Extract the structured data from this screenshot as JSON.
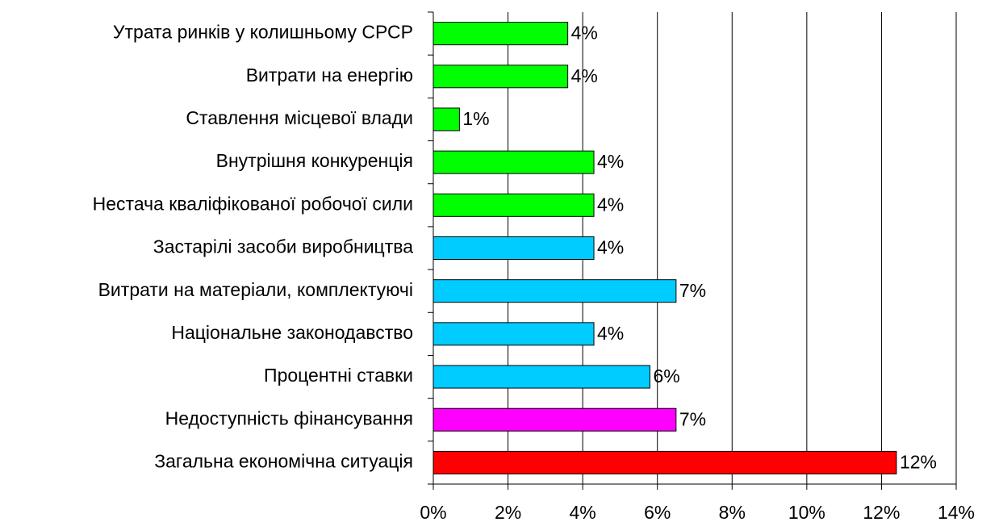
{
  "chart_data": {
    "type": "barh",
    "categories": [
      "Утрата ринків у колишньому СРСР",
      "Витрати на енергію",
      "Ставлення місцевої влади",
      "Внутрішня конкуренція",
      "Нестача кваліфікованої робочої сили",
      "Застарілі засоби виробництва",
      "Витрати на матеріали, комплектуючі",
      "Національне законодавство",
      "Процентні ставки",
      "Недоступність фінансування",
      "Загальна економічна ситуація"
    ],
    "values": [
      3.6,
      3.6,
      0.7,
      4.3,
      4.3,
      4.3,
      6.5,
      4.3,
      5.8,
      6.5,
      12.4
    ],
    "value_labels": [
      "4%",
      "4%",
      "1%",
      "4%",
      "4%",
      "4%",
      "7%",
      "4%",
      "6%",
      "7%",
      "12%"
    ],
    "colors": [
      "#00ff00",
      "#00ff00",
      "#00ff00",
      "#00ff00",
      "#00ff00",
      "#00ccff",
      "#00ccff",
      "#00ccff",
      "#00ccff",
      "#ff00ff",
      "#ff0000"
    ],
    "xlim": [
      0,
      14
    ],
    "xticks": [
      {
        "value": 0,
        "label": "0%"
      },
      {
        "value": 2,
        "label": "2%"
      },
      {
        "value": 4,
        "label": "4%"
      },
      {
        "value": 6,
        "label": "6%"
      },
      {
        "value": 8,
        "label": "8%"
      },
      {
        "value": 10,
        "label": "10%"
      },
      {
        "value": 12,
        "label": "12%"
      },
      {
        "value": 14,
        "label": "14%"
      }
    ],
    "grid": true
  }
}
